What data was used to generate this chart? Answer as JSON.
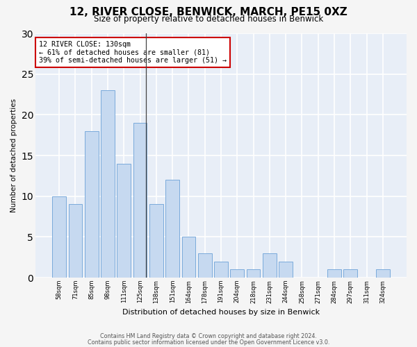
{
  "title": "12, RIVER CLOSE, BENWICK, MARCH, PE15 0XZ",
  "subtitle": "Size of property relative to detached houses in Benwick",
  "xlabel": "Distribution of detached houses by size in Benwick",
  "ylabel": "Number of detached properties",
  "categories": [
    "58sqm",
    "71sqm",
    "85sqm",
    "98sqm",
    "111sqm",
    "125sqm",
    "138sqm",
    "151sqm",
    "164sqm",
    "178sqm",
    "191sqm",
    "204sqm",
    "218sqm",
    "231sqm",
    "244sqm",
    "258sqm",
    "271sqm",
    "284sqm",
    "297sqm",
    "311sqm",
    "324sqm"
  ],
  "values": [
    10,
    9,
    18,
    23,
    14,
    19,
    9,
    12,
    5,
    3,
    2,
    1,
    1,
    3,
    2,
    0,
    0,
    1,
    1,
    0,
    1
  ],
  "bar_color": "#c6d9f0",
  "bar_edge_color": "#7aaadb",
  "annotation_text": "12 RIVER CLOSE: 130sqm\n← 61% of detached houses are smaller (81)\n39% of semi-detached houses are larger (51) →",
  "annotation_box_color": "#ffffff",
  "annotation_box_edge_color": "#cc0000",
  "ylim": [
    0,
    30
  ],
  "yticks": [
    0,
    5,
    10,
    15,
    20,
    25,
    30
  ],
  "background_color": "#e8eef7",
  "grid_color": "#ffffff",
  "fig_background": "#f5f5f5",
  "footer_line1": "Contains HM Land Registry data © Crown copyright and database right 2024.",
  "footer_line2": "Contains public sector information licensed under the Open Government Licence v3.0."
}
